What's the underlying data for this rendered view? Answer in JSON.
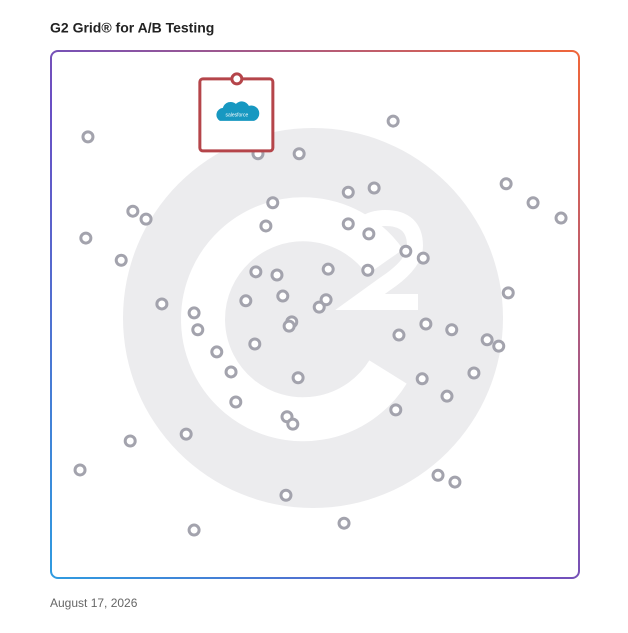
{
  "chart_data": {
    "type": "scatter",
    "title": "G2 Grid® for A/B Testing",
    "date": "August 17, 2026",
    "xlim": [
      0,
      100
    ],
    "ylim": [
      0,
      100
    ],
    "color": "#a3a3ad",
    "x": [
      7.0,
      64.8,
      39.2,
      47.0,
      86.2,
      91.3,
      96.6,
      61.2,
      56.3,
      42.0,
      15.5,
      18.0,
      40.7,
      56.3,
      60.2,
      6.6,
      67.2,
      70.5,
      13.3,
      52.5,
      60.0,
      38.8,
      42.8,
      86.6,
      43.9,
      36.9,
      52.1,
      21.0,
      50.8,
      27.1,
      45.6,
      45.1,
      27.8,
      71.0,
      75.9,
      65.9,
      82.6,
      84.8,
      38.6,
      31.4,
      34.1,
      46.8,
      80.1,
      70.3,
      75.0,
      35.0,
      65.3,
      44.7,
      45.8,
      25.6,
      15.0,
      5.5,
      73.3,
      76.5,
      44.5,
      55.5,
      27.1
    ],
    "y": [
      83.7,
      86.7,
      80.5,
      80.5,
      74.8,
      71.2,
      68.3,
      74.0,
      73.2,
      71.2,
      69.6,
      68.1,
      66.8,
      67.2,
      65.3,
      64.5,
      62.0,
      60.7,
      60.3,
      58.6,
      58.4,
      58.1,
      57.5,
      54.1,
      53.5,
      52.6,
      52.8,
      52.0,
      51.4,
      50.3,
      48.6,
      47.8,
      47.1,
      48.2,
      47.1,
      46.1,
      45.2,
      44.0,
      44.4,
      42.9,
      39.1,
      38.0,
      38.9,
      37.8,
      34.5,
      33.4,
      31.9,
      30.6,
      29.2,
      27.3,
      26.0,
      20.5,
      19.5,
      18.2,
      15.7,
      10.4,
      9.1
    ],
    "highlight": {
      "label": "salesforce",
      "x": 35.2,
      "y": 94.7,
      "color": "#b5454a"
    }
  }
}
